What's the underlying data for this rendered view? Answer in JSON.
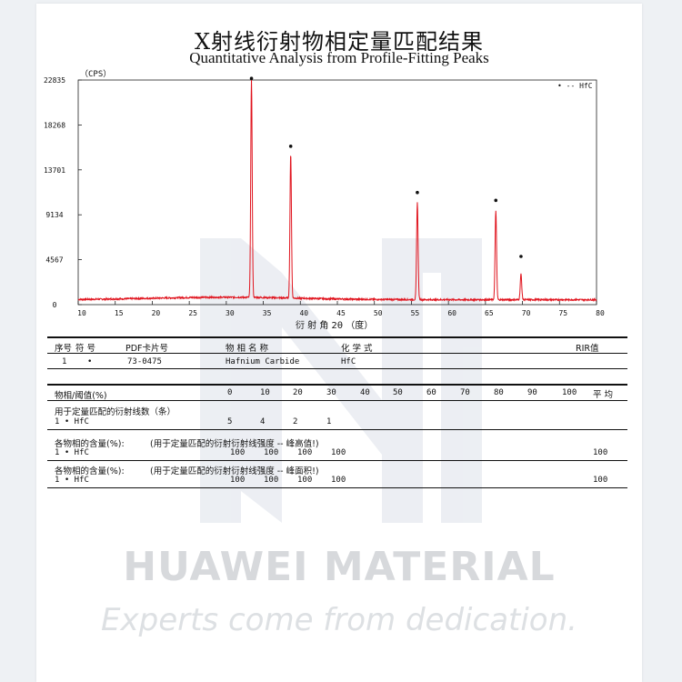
{
  "title_cn": "X射线衍射物相定量匹配结果",
  "title_en": "Quantitative Analysis from Profile-Fitting Peaks",
  "chart_data": {
    "type": "line",
    "ylabel": "（CPS）",
    "xlabel": "衍 射 角 2θ （度）",
    "xlim": [
      10,
      80
    ],
    "ylim": [
      0,
      22835
    ],
    "x_ticks": [
      10,
      15,
      20,
      25,
      30,
      35,
      40,
      45,
      50,
      55,
      60,
      65,
      70,
      75,
      80
    ],
    "y_ticks": [
      0,
      4567,
      9134,
      13701,
      18268,
      22835
    ],
    "legend": "• -- HfC",
    "legend_position": "top-right",
    "line_color": "#e0141e",
    "baseline": 500,
    "peaks": [
      {
        "x": 33.4,
        "y": 22600
      },
      {
        "x": 38.7,
        "y": 15200
      },
      {
        "x": 55.8,
        "y": 10400
      },
      {
        "x": 66.4,
        "y": 9600
      },
      {
        "x": 69.8,
        "y": 3100
      }
    ],
    "markers": [
      {
        "x": 33.4,
        "y": 23000
      },
      {
        "x": 38.7,
        "y": 16100
      },
      {
        "x": 55.8,
        "y": 11400
      },
      {
        "x": 66.4,
        "y": 10600
      },
      {
        "x": 69.8,
        "y": 4900
      }
    ]
  },
  "table": {
    "header": {
      "seq": "序号",
      "symbol": "符  号",
      "pdf": "PDF卡片号",
      "phase": "物 相 名 称",
      "formula": "化  学  式",
      "rir": "RIR值"
    },
    "row": {
      "seq": "1",
      "symbol": "•",
      "pdf": "73-0475",
      "phase": "Hafnium Carbide",
      "formula": "HfC",
      "rir": ""
    },
    "threshold_label": "物相/阈值(%)",
    "threshold_values": [
      "0",
      "10",
      "20",
      "30",
      "40",
      "50",
      "60",
      "70",
      "80",
      "90",
      "100"
    ],
    "average_label": "平 均",
    "lines_label": "用于定量匹配的衍射线数（条）",
    "lines_row": {
      "id": "1  •  HfC",
      "values": [
        "5",
        "4",
        "2",
        "1"
      ]
    },
    "content_height_label": "各物相的含量(%):",
    "content_height_note": "(用于定量匹配的衍射衍射线强度 -- 峰高值!)",
    "content_height_row": {
      "id": "1  •  HfC",
      "values": [
        "100",
        "100",
        "100",
        "100"
      ],
      "avg": "100"
    },
    "content_area_label": "各物相的含量(%):",
    "content_area_note": "(用于定量匹配的衍射衍射线强度 -- 峰面积!)",
    "content_area_row": {
      "id": "1  •  HfC",
      "values": [
        "100",
        "100",
        "100",
        "100"
      ],
      "avg": "100"
    }
  },
  "watermark": {
    "name": "HUAWEI MATERIAL",
    "tagline": "Experts come from dedication.",
    "color": "#d7d9dc"
  }
}
